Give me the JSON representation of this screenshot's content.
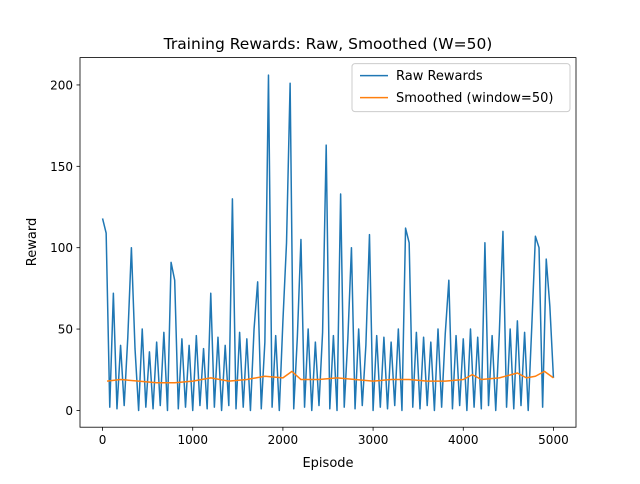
{
  "chart_data": {
    "type": "line",
    "title": "Training Rewards: Raw, Smoothed (W=50)",
    "x_label": "Episode",
    "y_label": "Reward",
    "xlim": [
      -250,
      5250
    ],
    "ylim": [
      -10.3,
      216.8
    ],
    "xticks": [
      0,
      1000,
      2000,
      3000,
      4000,
      5000
    ],
    "yticks": [
      0,
      50,
      100,
      150,
      200
    ],
    "legend": "upper right",
    "series": [
      {
        "name": "Raw Rewards",
        "color": "#1f77b4",
        "x": [
          0,
          40,
          80,
          120,
          160,
          200,
          240,
          280,
          320,
          360,
          400,
          440,
          480,
          520,
          560,
          600,
          640,
          680,
          720,
          760,
          800,
          840,
          880,
          920,
          960,
          1000,
          1040,
          1080,
          1120,
          1160,
          1200,
          1240,
          1280,
          1320,
          1360,
          1400,
          1440,
          1480,
          1520,
          1560,
          1600,
          1640,
          1680,
          1720,
          1760,
          1800,
          1840,
          1880,
          1920,
          1960,
          2000,
          2040,
          2080,
          2120,
          2160,
          2200,
          2240,
          2280,
          2320,
          2360,
          2400,
          2440,
          2480,
          2520,
          2560,
          2600,
          2640,
          2680,
          2720,
          2760,
          2800,
          2840,
          2880,
          2920,
          2960,
          3000,
          3040,
          3080,
          3120,
          3160,
          3200,
          3240,
          3280,
          3320,
          3360,
          3400,
          3440,
          3480,
          3520,
          3560,
          3600,
          3640,
          3680,
          3720,
          3760,
          3800,
          3840,
          3880,
          3920,
          3960,
          4000,
          4040,
          4080,
          4120,
          4160,
          4200,
          4240,
          4280,
          4320,
          4360,
          4400,
          4440,
          4480,
          4520,
          4560,
          4600,
          4640,
          4680,
          4720,
          4760,
          4800,
          4840,
          4880,
          4920,
          4960,
          5000
        ],
        "values": [
          118,
          109,
          2,
          72,
          1,
          40,
          3,
          45,
          100,
          38,
          0,
          50,
          2,
          36,
          1,
          42,
          3,
          48,
          0,
          91,
          80,
          1,
          44,
          2,
          40,
          0,
          46,
          3,
          38,
          1,
          72,
          2,
          45,
          0,
          40,
          3,
          130,
          1,
          48,
          2,
          44,
          0,
          50,
          79,
          1,
          42,
          206,
          2,
          46,
          0,
          55,
          103,
          201,
          1,
          45,
          105,
          2,
          50,
          0,
          42,
          3,
          48,
          163,
          1,
          46,
          0,
          133,
          2,
          44,
          100,
          1,
          50,
          3,
          40,
          108,
          0,
          46,
          2,
          45,
          1,
          42,
          3,
          50,
          0,
          112,
          103,
          2,
          48,
          1,
          45,
          3,
          42,
          0,
          50,
          2,
          47,
          80,
          1,
          46,
          3,
          44,
          0,
          50,
          2,
          45,
          1,
          103,
          3,
          46,
          0,
          48,
          110,
          2,
          50,
          1,
          55,
          3,
          48,
          0,
          52,
          107,
          100,
          2,
          93,
          64,
          20
        ]
      },
      {
        "name": "Smoothed (window=50)",
        "color": "#ff7f0e",
        "x": [
          50,
          200,
          400,
          600,
          800,
          1000,
          1200,
          1400,
          1600,
          1800,
          2000,
          2100,
          2200,
          2400,
          2600,
          2800,
          3000,
          3200,
          3400,
          3600,
          3800,
          4000,
          4100,
          4200,
          4400,
          4600,
          4700,
          4800,
          4900,
          5000
        ],
        "values": [
          18,
          19,
          18,
          17,
          17,
          18,
          20,
          18,
          19,
          21,
          20,
          24,
          19,
          19,
          20,
          19,
          18,
          19,
          19,
          18,
          18,
          19,
          22,
          19,
          20,
          23,
          20,
          21,
          24,
          20
        ]
      }
    ]
  }
}
